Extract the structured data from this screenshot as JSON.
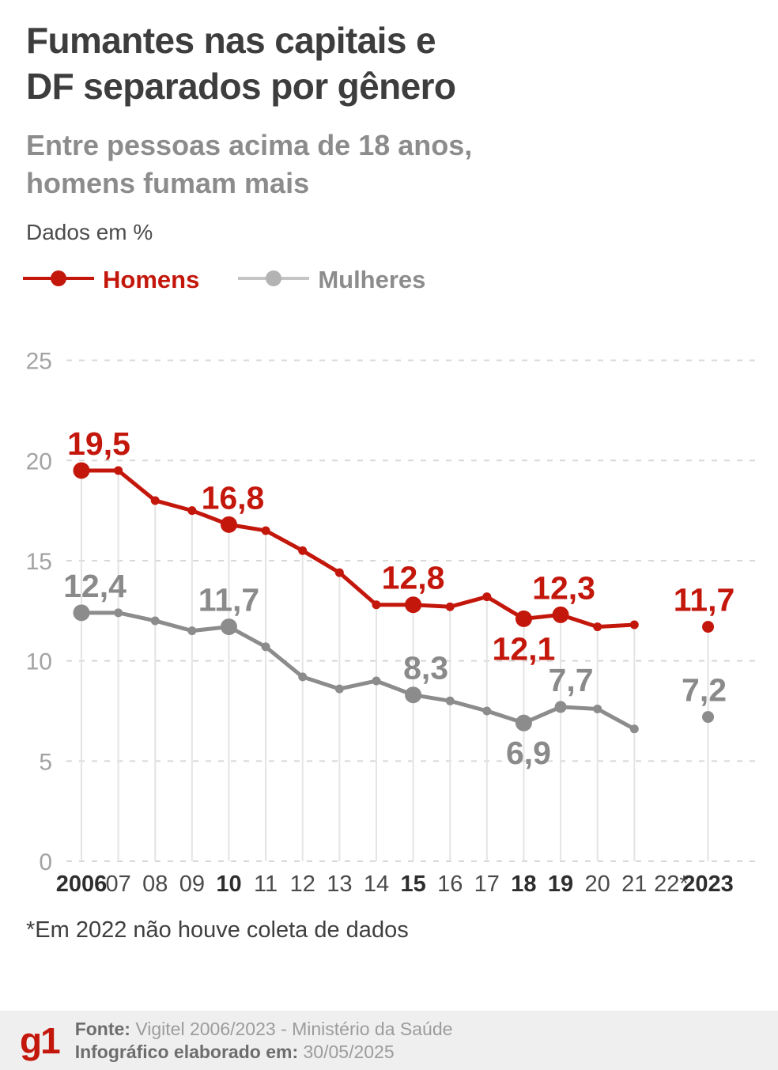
{
  "header": {
    "title_line1": "Fumantes nas capitais e",
    "title_line2": "DF separados por gênero",
    "subtitle_line1": "Entre pessoas acima de 18 anos,",
    "subtitle_line2": "homens fumam mais",
    "units_note": "Dados em %"
  },
  "legend": [
    {
      "label": "Homens",
      "line_color": "#c4170c",
      "dot_color": "#c4170c",
      "label_color": "#c4170c"
    },
    {
      "label": "Mulheres",
      "line_color": "#c5c5c5",
      "dot_color": "#b3b3b3",
      "label_color": "#8c8c8c"
    }
  ],
  "colors": {
    "gridline": "#d8d8d8",
    "guide": "#e4e4e4",
    "y_tick": "#a3a3a3",
    "x_tick": "#4a4a4a",
    "x_tick_bold": "#2e2e2e",
    "accent_red": "#c4170c",
    "series_gray": "#8c8c8c",
    "footer_bg": "#efefef"
  },
  "chart_data": {
    "type": "line",
    "title": "Fumantes nas capitais e DF separados por gênero",
    "subtitle": "Entre pessoas acima de 18 anos, homens fumam mais",
    "unit": "%",
    "ylim": [
      0,
      25
    ],
    "yticks": [
      25,
      20,
      15,
      10,
      5,
      0
    ],
    "grid": "horizontal-dashed",
    "legend_position": "top",
    "categories": [
      "2006",
      "07",
      "08",
      "09",
      "10",
      "11",
      "12",
      "13",
      "14",
      "15",
      "16",
      "17",
      "18",
      "19",
      "20",
      "21",
      "22*",
      "2023"
    ],
    "bold_categories": [
      "2006",
      "10",
      "15",
      "18",
      "19",
      "2023"
    ],
    "no_data_categories": [
      "22*"
    ],
    "series": [
      {
        "name": "Homens",
        "color": "#c4170c",
        "label_color": "#c4170c",
        "values": [
          19.5,
          19.5,
          18.0,
          17.5,
          16.8,
          16.5,
          15.5,
          14.4,
          12.8,
          12.8,
          12.7,
          13.2,
          12.1,
          12.3,
          11.7,
          11.8,
          null,
          11.7
        ],
        "labels": [
          {
            "cat": "2006",
            "text": "19,5",
            "pos": "above",
            "dx": 22
          },
          {
            "cat": "10",
            "text": "16,8",
            "pos": "above",
            "dx": 5
          },
          {
            "cat": "15",
            "text": "12,8",
            "pos": "above",
            "dx": 0
          },
          {
            "cat": "18",
            "text": "12,1",
            "pos": "below",
            "dx": 0
          },
          {
            "cat": "19",
            "text": "12,3",
            "pos": "above",
            "dx": 4
          },
          {
            "cat": "2023",
            "text": "11,7",
            "pos": "above",
            "dx": -5
          }
        ],
        "big_dots": [
          "2006",
          "10",
          "15",
          "18",
          "19"
        ],
        "medium_dots": [
          "2023"
        ]
      },
      {
        "name": "Mulheres",
        "color": "#8c8c8c",
        "label_color": "#8a8a8a",
        "values": [
          12.4,
          12.4,
          12.0,
          11.5,
          11.7,
          10.7,
          9.2,
          8.6,
          9.0,
          8.3,
          8.0,
          7.5,
          6.9,
          7.7,
          7.6,
          6.6,
          null,
          7.2
        ],
        "labels": [
          {
            "cat": "2006",
            "text": "12,4",
            "pos": "above",
            "dx": 17
          },
          {
            "cat": "10",
            "text": "11,7",
            "pos": "above",
            "dx": 0
          },
          {
            "cat": "15",
            "text": "8,3",
            "pos": "above",
            "dx": 16
          },
          {
            "cat": "18",
            "text": "6,9",
            "pos": "below",
            "dx": 6
          },
          {
            "cat": "19",
            "text": "7,7",
            "pos": "above",
            "dx": 13
          },
          {
            "cat": "2023",
            "text": "7,2",
            "pos": "above",
            "dx": -5
          }
        ],
        "big_dots": [
          "2006",
          "10",
          "15",
          "18"
        ],
        "medium_dots": [
          "19",
          "2023"
        ]
      }
    ]
  },
  "footnote": "*Em 2022 não houve coleta de dados",
  "footer": {
    "logo": "g1",
    "source_label": "Fonte:",
    "source_value": "Vigitel 2006/2023 - Ministério da Saúde",
    "made_label": "Infográfico elaborado em:",
    "made_value": "30/05/2025"
  }
}
